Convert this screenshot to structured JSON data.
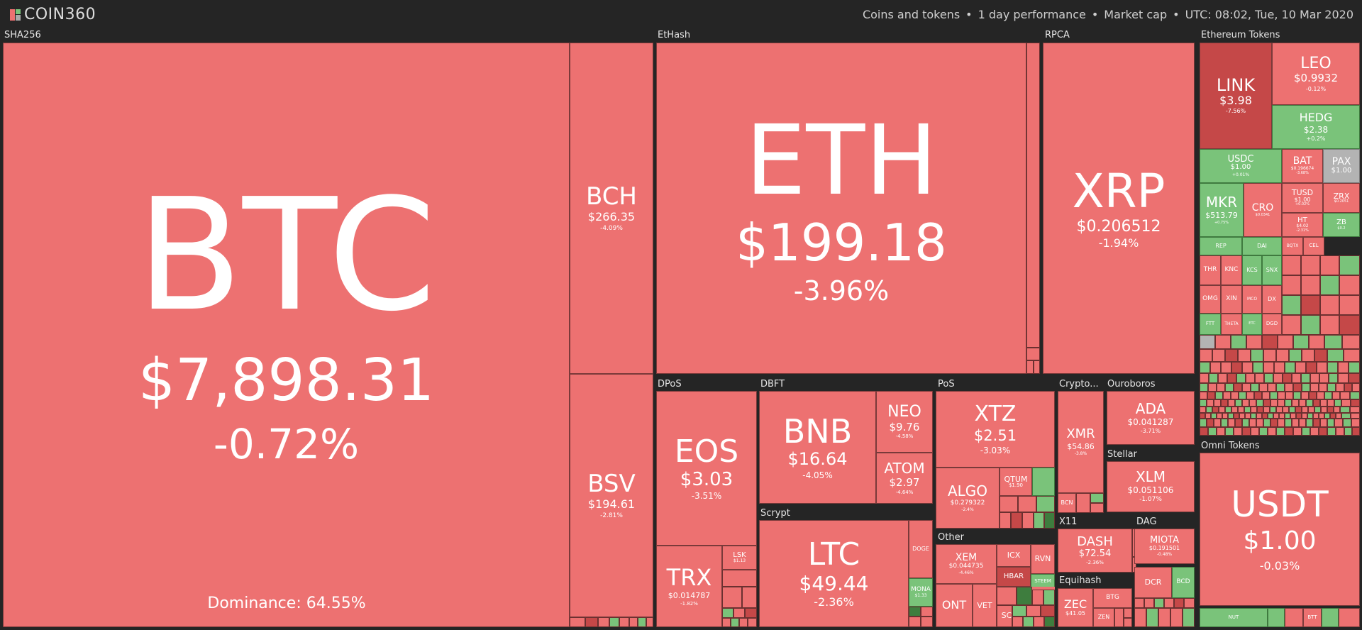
{
  "header": {
    "logo_text": "COIN360",
    "info": [
      "Coins and tokens",
      "1 day performance",
      "Market cap",
      "UTC: 08:02, Tue, 10 Mar 2020"
    ]
  },
  "groups": {
    "sha256": "SHA256",
    "ethash": "EtHash",
    "rpca": "RPCA",
    "eth_tokens": "Ethereum Tokens",
    "dpos": "DPoS",
    "dbft": "DBFT",
    "pos": "PoS",
    "crypto": "Crypto...",
    "ouroboros": "Ouroboros",
    "stellar": "Stellar",
    "scrypt": "Scrypt",
    "other": "Other",
    "x11": "X11",
    "dag": "DAG",
    "equihash": "Equihash",
    "omni": "Omni Tokens"
  },
  "coins": {
    "btc": {
      "sym": "BTC",
      "price": "$7,898.31",
      "change": "-0.72%"
    },
    "bch": {
      "sym": "BCH",
      "price": "$266.35",
      "change": "-4.09%"
    },
    "bsv": {
      "sym": "BSV",
      "price": "$194.61",
      "change": "-2.81%"
    },
    "eth": {
      "sym": "ETH",
      "price": "$199.18",
      "change": "-3.96%"
    },
    "xrp": {
      "sym": "XRP",
      "price": "$0.206512",
      "change": "-1.94%"
    },
    "link": {
      "sym": "LINK",
      "price": "$3.98",
      "change": "-7.56%"
    },
    "leo": {
      "sym": "LEO",
      "price": "$0.9932",
      "change": "-0.12%"
    },
    "hedg": {
      "sym": "HEDG",
      "price": "$2.38",
      "change": "+0.2%"
    },
    "usdc": {
      "sym": "USDC",
      "price": "$1.00",
      "change": "+0.01%"
    },
    "bat": {
      "sym": "BAT",
      "price": "$0.196674",
      "change": "-3.68%"
    },
    "pax": {
      "sym": "PAX",
      "price": "$1.00",
      "change": ""
    },
    "mkr": {
      "sym": "MKR",
      "price": "$513.79",
      "change": "+0.75%"
    },
    "cro": {
      "sym": "CRO",
      "price": "$0.0341",
      "change": ""
    },
    "tusd": {
      "sym": "TUSD",
      "price": "$1.00",
      "change": "+0.02%"
    },
    "zrx": {
      "sym": "ZRX",
      "price": "$0.2051",
      "change": ""
    },
    "ht": {
      "sym": "HT",
      "price": "$4.02",
      "change": "-2.31%"
    },
    "zb": {
      "sym": "ZB",
      "price": "$0.2",
      "change": ""
    },
    "eos": {
      "sym": "EOS",
      "price": "$3.03",
      "change": "-3.51%"
    },
    "trx": {
      "sym": "TRX",
      "price": "$0.014787",
      "change": "-1.82%"
    },
    "lsk": {
      "sym": "LSK",
      "price": "$1.13",
      "change": ""
    },
    "bnb": {
      "sym": "BNB",
      "price": "$16.64",
      "change": "-4.05%"
    },
    "neo": {
      "sym": "NEO",
      "price": "$9.76",
      "change": "-4.58%"
    },
    "atom": {
      "sym": "ATOM",
      "price": "$2.97",
      "change": "-4.64%"
    },
    "ltc": {
      "sym": "LTC",
      "price": "$49.44",
      "change": "-2.36%"
    },
    "doge": {
      "sym": "DOGE",
      "price": "",
      "change": ""
    },
    "mona": {
      "sym": "MONA",
      "price": "$1.33",
      "change": ""
    },
    "xtz": {
      "sym": "XTZ",
      "price": "$2.51",
      "change": "-3.03%"
    },
    "algo": {
      "sym": "ALGO",
      "price": "$0.279322",
      "change": "-2.4%"
    },
    "qtum": {
      "sym": "QTUM",
      "price": "$1.90",
      "change": ""
    },
    "xmr": {
      "sym": "XMR",
      "price": "$54.86",
      "change": "-3.8%"
    },
    "bcn": {
      "sym": "BCN",
      "price": "",
      "change": ""
    },
    "ada": {
      "sym": "ADA",
      "price": "$0.041287",
      "change": "-3.71%"
    },
    "xlm": {
      "sym": "XLM",
      "price": "$0.051106",
      "change": "-1.07%"
    },
    "xem": {
      "sym": "XEM",
      "price": "$0.044735",
      "change": "-4.46%"
    },
    "icx": {
      "sym": "ICX",
      "price": "",
      "change": ""
    },
    "rvn": {
      "sym": "RVN",
      "price": "",
      "change": ""
    },
    "hbar": {
      "sym": "HBAR",
      "price": "",
      "change": ""
    },
    "steem": {
      "sym": "STEEM",
      "price": "",
      "change": ""
    },
    "ont": {
      "sym": "ONT",
      "price": "",
      "change": ""
    },
    "vet": {
      "sym": "VET",
      "price": "",
      "change": ""
    },
    "sc": {
      "sym": "SC",
      "price": "",
      "change": ""
    },
    "dash": {
      "sym": "DASH",
      "price": "$72.54",
      "change": "-2.36%"
    },
    "miota": {
      "sym": "MIOTA",
      "price": "$0.191501",
      "change": "-0.48%"
    },
    "dcr": {
      "sym": "DCR",
      "price": "",
      "change": ""
    },
    "bcd": {
      "sym": "BCD",
      "price": "",
      "change": ""
    },
    "zec": {
      "sym": "ZEC",
      "price": "$41.05",
      "change": ""
    },
    "btg": {
      "sym": "BTG",
      "price": "",
      "change": ""
    },
    "zen": {
      "sym": "ZEN",
      "price": "",
      "change": ""
    },
    "usdt": {
      "sym": "USDT",
      "price": "$1.00",
      "change": "-0.03%"
    }
  },
  "small_labels": [
    "REP",
    "DAI",
    "BQTX",
    "CEL",
    "THR",
    "KNC",
    "KCS",
    "SNX",
    "OMG",
    "XIN",
    "MCO",
    "DX",
    "FTT",
    "THETA",
    "DGD",
    "ETC",
    "NUT",
    "BTT"
  ],
  "dominance": "Dominance: 64.55%",
  "colors": {
    "red": "#ed7171",
    "dark_red": "#c54848",
    "green": "#7ac37a",
    "gray": "#b3b3b3",
    "background": "#252525"
  }
}
